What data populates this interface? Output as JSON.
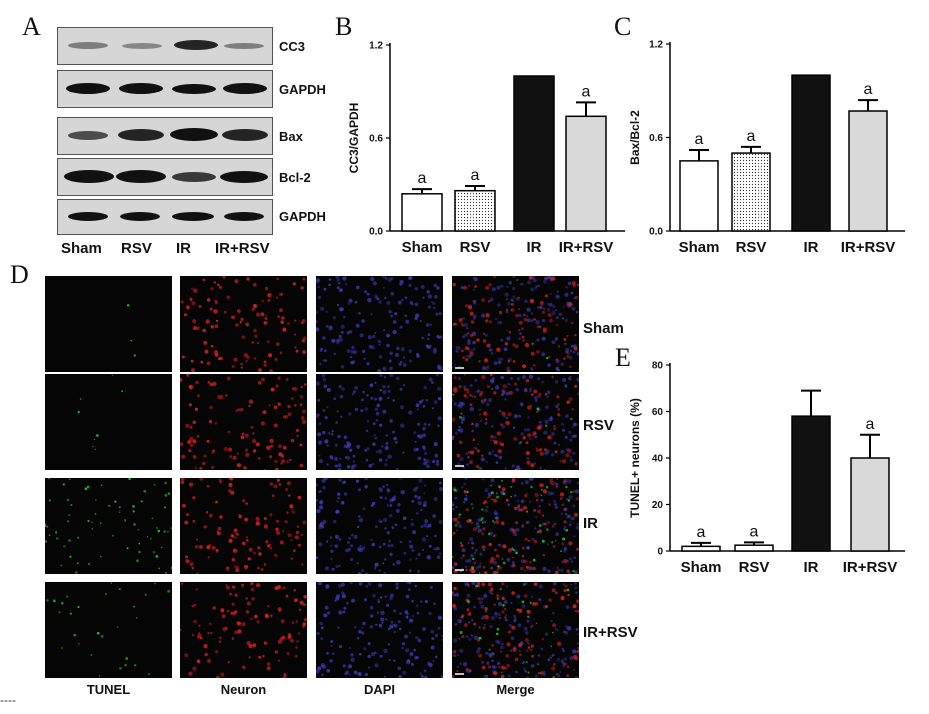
{
  "panels": {
    "a": "A",
    "b": "B",
    "c": "C",
    "d": "D",
    "e": "E"
  },
  "blot": {
    "bands": [
      "CC3",
      "GAPDH",
      "Bax",
      "Bcl-2",
      "GAPDH"
    ],
    "lanes": [
      "Sham",
      "RSV",
      "IR",
      "IR+RSV"
    ]
  },
  "micrograph": {
    "rows": [
      "Sham",
      "RSV",
      "IR",
      "IR+RSV"
    ],
    "columns": [
      "TUNEL",
      "Neuron",
      "DAPI",
      "Merge"
    ],
    "colors": {
      "tunel": "#2fd02f",
      "neuron": "#e02020",
      "dapi": "#4040c8"
    }
  },
  "footer_dash": "----",
  "chart_data": [
    {
      "id": "B",
      "type": "bar",
      "categories": [
        "Sham",
        "RSV",
        "IR",
        "IR+RSV"
      ],
      "values": [
        0.24,
        0.26,
        1.0,
        0.74
      ],
      "errors": [
        0.03,
        0.03,
        0.0,
        0.09
      ],
      "annotations": [
        "a",
        "a",
        "",
        "a"
      ],
      "ylabel": "CC3/GAPDH",
      "ylim": [
        0,
        1.2
      ],
      "yticks": [
        "0.0",
        "0.6",
        "1.2"
      ],
      "fills": [
        "#ffffff",
        "#e6e6e6",
        "#111111",
        "#d9d9d9"
      ]
    },
    {
      "id": "C",
      "type": "bar",
      "categories": [
        "Sham",
        "RSV",
        "IR",
        "IR+RSV"
      ],
      "values": [
        0.45,
        0.5,
        1.0,
        0.77
      ],
      "errors": [
        0.07,
        0.04,
        0.0,
        0.07
      ],
      "annotations": [
        "a",
        "a",
        "",
        "a"
      ],
      "ylabel": "Bax/Bcl-2",
      "ylim": [
        0,
        1.2
      ],
      "yticks": [
        "0.0",
        "0.6",
        "1.2"
      ],
      "fills": [
        "#ffffff",
        "#e6e6e6",
        "#111111",
        "#d9d9d9"
      ]
    },
    {
      "id": "E",
      "type": "bar",
      "categories": [
        "Sham",
        "RSV",
        "IR",
        "IR+RSV"
      ],
      "values": [
        2,
        2.5,
        58,
        40
      ],
      "errors": [
        1.5,
        1.2,
        11,
        10
      ],
      "annotations": [
        "a",
        "a",
        "",
        "a"
      ],
      "ylabel": "TUNEL+ neurons (%)",
      "ylim": [
        0,
        80
      ],
      "yticks": [
        "0",
        "20",
        "40",
        "60",
        "80"
      ],
      "fills": [
        "#ffffff",
        "#ffffff",
        "#111111",
        "#d9d9d9"
      ]
    }
  ]
}
